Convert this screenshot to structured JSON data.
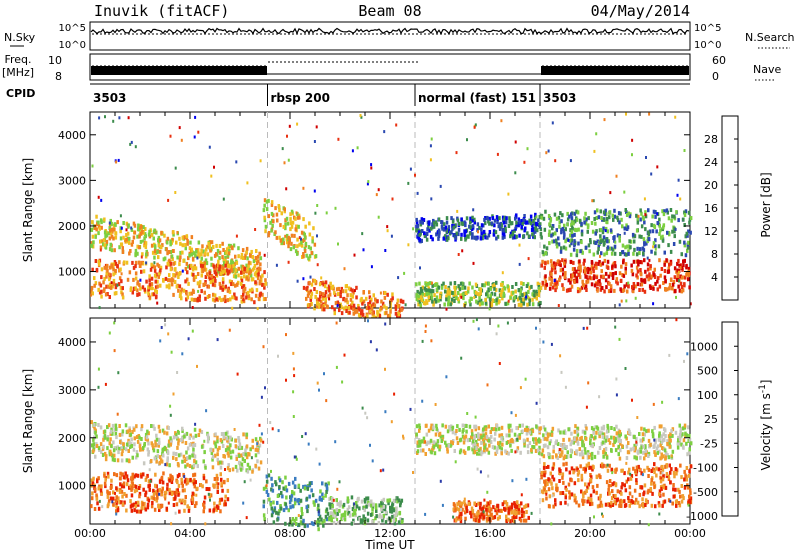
{
  "header": {
    "radar": "Inuvik (fitACF)",
    "beam": "Beam 08",
    "date": "04/May/2014"
  },
  "panel_labels": {
    "nsky": "N.Sky",
    "nsearch": "N.Search",
    "freq_line1": "Freq.",
    "freq_line2": "[MHz]",
    "nave": "Nave",
    "cpid": "CPID",
    "nsky_ticks": [
      "10^5",
      "10^0"
    ],
    "nsearch_ticks": [
      "10^5",
      "10^0"
    ],
    "freq_ticks": [
      "10",
      "8"
    ],
    "nave_ticks": [
      "60",
      "0"
    ]
  },
  "cpid_segments": [
    {
      "label": "3503",
      "start_hour": 0
    },
    {
      "label": "rbsp 200",
      "start_hour": 7.1
    },
    {
      "label": "normal (fast) 151",
      "start_hour": 13.0
    },
    {
      "label": "3503",
      "start_hour": 18.0
    }
  ],
  "chart_data": [
    {
      "type": "heatmap",
      "name": "Power",
      "ylabel": "Slant Range [km]",
      "xlim": [
        0,
        24
      ],
      "ylim": [
        200,
        4500
      ],
      "yticks": [
        1000,
        2000,
        3000,
        4000
      ],
      "colorbar_label": "Power [dB]",
      "colorbar_ticks": [
        "28",
        "24",
        "20",
        "16",
        "12",
        "8",
        "4"
      ],
      "colors": [
        "#0000ee",
        "#2a48b0",
        "#3c8c4c",
        "#7ccf40",
        "#f0c020",
        "#f08020",
        "#e83010",
        "#d00000"
      ],
      "bands": [
        {
          "t0": 0.0,
          "t1": 6.8,
          "r0": 1600,
          "r1": 2300,
          "level": 4,
          "slope": -800
        },
        {
          "t0": 0.0,
          "t1": 7.0,
          "r0": 500,
          "r1": 1300,
          "level": 5,
          "slope": -150
        },
        {
          "t0": 6.9,
          "t1": 9.0,
          "r0": 1800,
          "r1": 2700,
          "level": 4,
          "slope": -600
        },
        {
          "t0": 8.5,
          "t1": 12.5,
          "r0": 250,
          "r1": 900,
          "level": 5,
          "slope": -400
        },
        {
          "t0": 13.0,
          "t1": 18.0,
          "r0": 1700,
          "r1": 2200,
          "level": 1,
          "slope": 100
        },
        {
          "t0": 13.0,
          "t1": 18.0,
          "r0": 300,
          "r1": 800,
          "level": 3,
          "slope": 0
        },
        {
          "t0": 18.0,
          "t1": 24.0,
          "r0": 600,
          "r1": 1300,
          "level": 6,
          "slope": 0
        },
        {
          "t0": 18.0,
          "t1": 24.0,
          "r0": 1400,
          "r1": 2400,
          "level": 2,
          "slope": 0
        }
      ]
    },
    {
      "type": "heatmap",
      "name": "Velocity",
      "ylabel": "Slant Range [km]",
      "xlabel": "Time UT",
      "xlim": [
        0,
        24
      ],
      "ylim": [
        200,
        4500
      ],
      "xticks": [
        "00:00",
        "04:00",
        "08:00",
        "12:00",
        "16:00",
        "20:00",
        "00:00"
      ],
      "yticks": [
        1000,
        2000,
        3000,
        4000
      ],
      "colorbar_label": "Velocity [m s^-1]",
      "colorbar_ticks": [
        "1000",
        "500",
        "100",
        "25",
        "-25",
        "-100",
        "-500",
        "-1000"
      ],
      "colors": [
        "#2a3aa8",
        "#3a7cc0",
        "#3c8c4c",
        "#7ccf40",
        "#c8c8c0",
        "#f0a030",
        "#f07018",
        "#e82000"
      ],
      "bands": [
        {
          "t0": 0.0,
          "t1": 6.8,
          "r0": 1600,
          "r1": 2400,
          "level": 4,
          "slope": -300
        },
        {
          "t0": 0.0,
          "t1": 5.5,
          "r0": 500,
          "r1": 1300,
          "level": 6,
          "slope": 0
        },
        {
          "t0": 6.9,
          "t1": 9.5,
          "r0": 300,
          "r1": 1300,
          "level": 2,
          "slope": -200
        },
        {
          "t0": 9.5,
          "t1": 12.5,
          "r0": 250,
          "r1": 800,
          "level": 3,
          "slope": 0
        },
        {
          "t0": 13.0,
          "t1": 18.0,
          "r0": 1700,
          "r1": 2300,
          "level": 4,
          "slope": 0
        },
        {
          "t0": 14.5,
          "t1": 17.5,
          "r0": 300,
          "r1": 700,
          "level": 6,
          "slope": 0
        },
        {
          "t0": 18.0,
          "t1": 24.0,
          "r0": 600,
          "r1": 1500,
          "level": 6,
          "slope": 0
        },
        {
          "t0": 18.0,
          "t1": 24.0,
          "r0": 1600,
          "r1": 2300,
          "level": 4,
          "slope": 0
        }
      ]
    }
  ]
}
